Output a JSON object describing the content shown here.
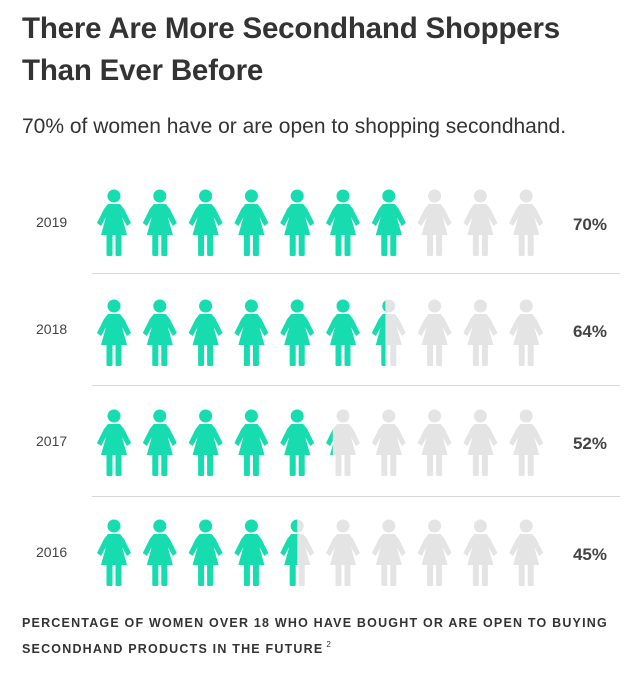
{
  "title": "There Are More Secondhand Shoppers Than Ever Before",
  "subtitle": "70% of women have or are open to shopping secondhand.",
  "footnote": "PERCENTAGE OF WOMEN OVER 18 WHO HAVE BOUGHT OR ARE OPEN TO BUYING SECONDHAND PRODUCTS IN THE FUTURE",
  "footnote_ref": "2",
  "colors": {
    "filled": "#17dcb0",
    "empty": "#e4e4e4",
    "text": "#333333",
    "divider": "#d8d8d8"
  },
  "chart_data": {
    "type": "pictograph",
    "icon": "woman-icon",
    "icons_per_row": 10,
    "rows": [
      {
        "year": "2019",
        "value": 70,
        "label": "70%"
      },
      {
        "year": "2018",
        "value": 64,
        "label": "64%"
      },
      {
        "year": "2017",
        "value": 52,
        "label": "52%"
      },
      {
        "year": "2016",
        "value": 45,
        "label": "45%"
      }
    ]
  }
}
